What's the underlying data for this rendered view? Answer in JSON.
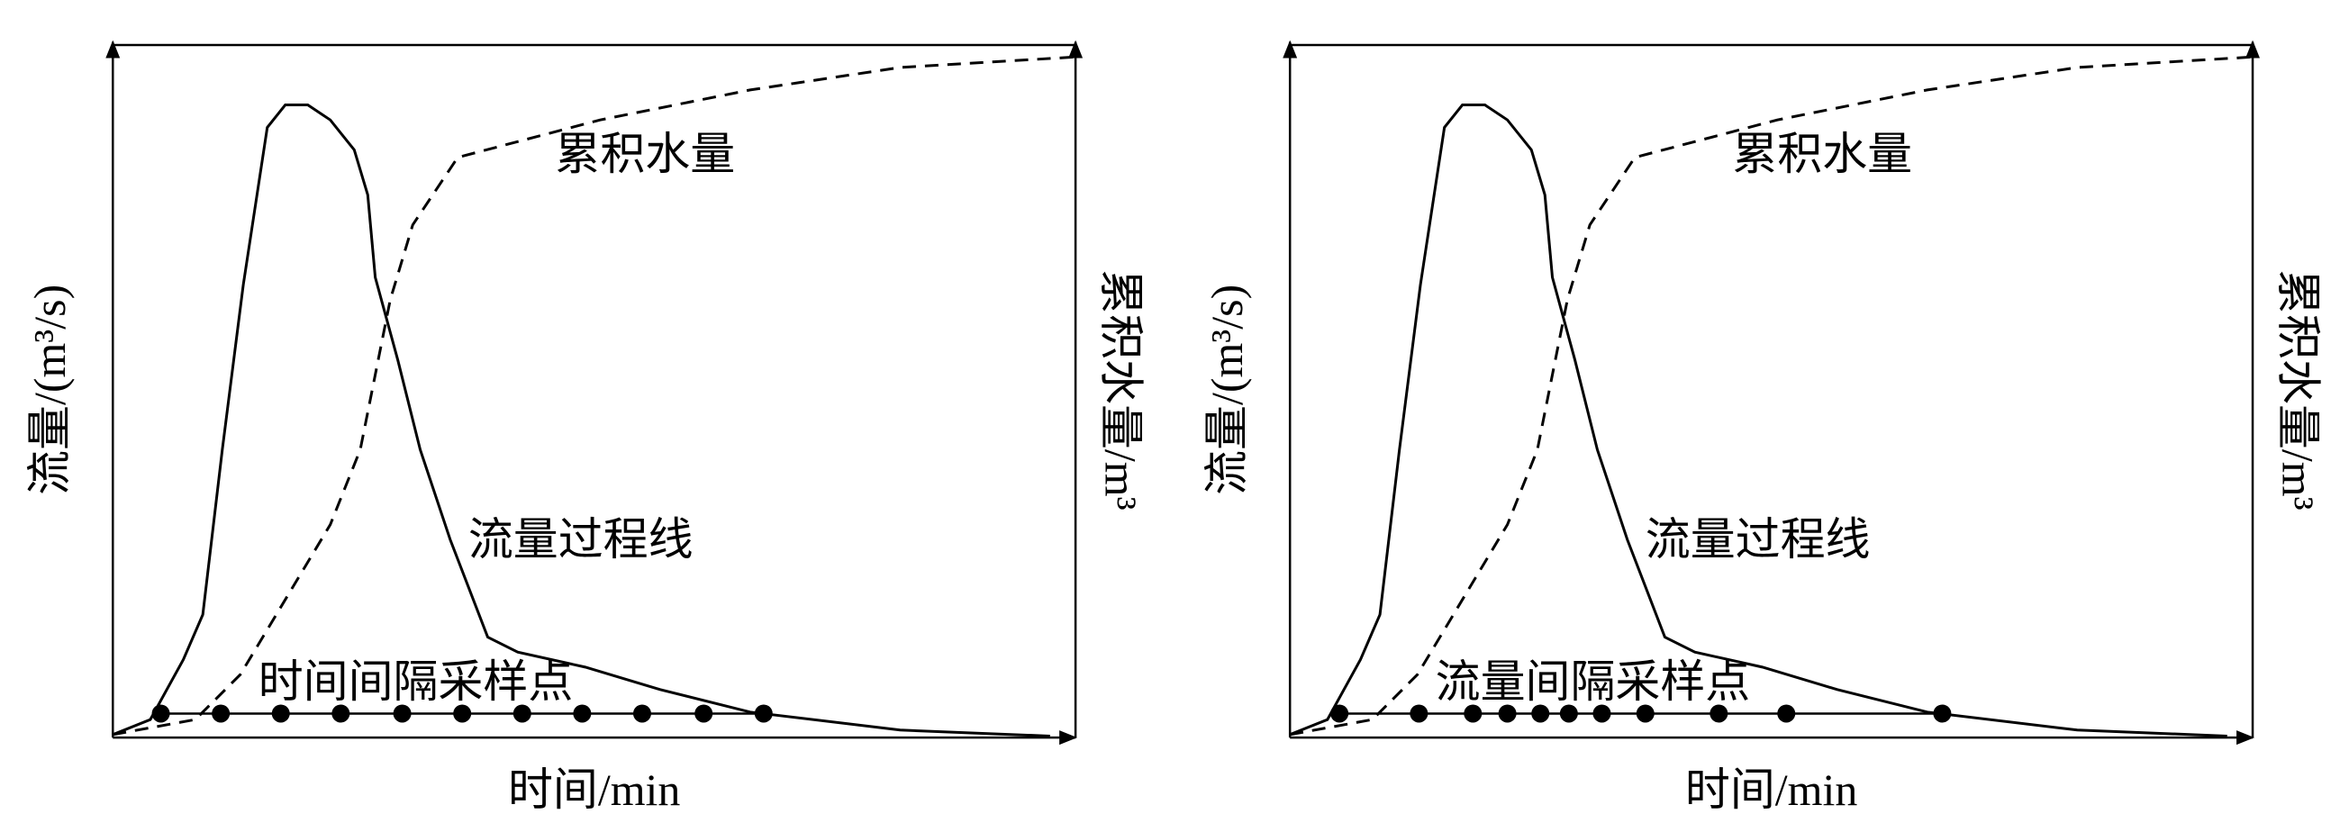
{
  "panels": [
    {
      "y_label": "流量/(m³/s)",
      "y2_label": "累积水量/m³",
      "x_label": "时间/min",
      "cumulative_label": "累积水量",
      "flow_label": "流量过程线",
      "sampling_label": "时间间隔采样点"
    },
    {
      "y_label": "流量/(m³/s)",
      "y2_label": "累积水量/m³",
      "x_label": "时间/min",
      "cumulative_label": "累积水量",
      "flow_label": "流量过程线",
      "sampling_label": "流量间隔采样点"
    }
  ]
}
